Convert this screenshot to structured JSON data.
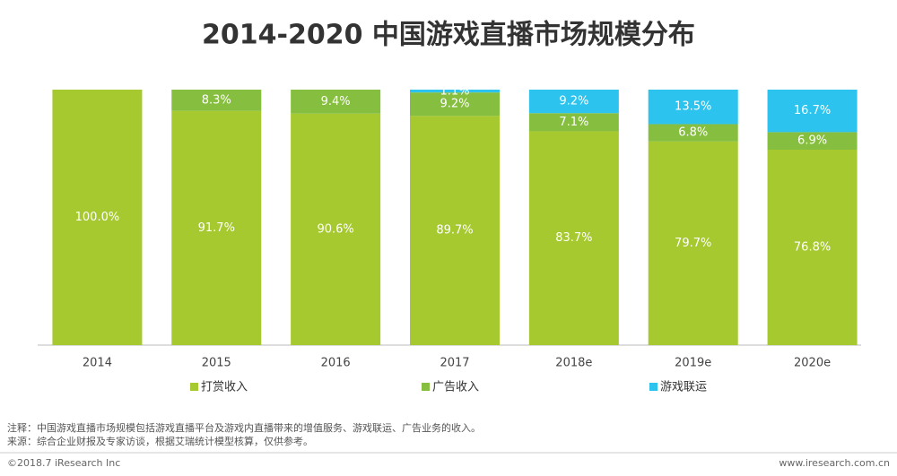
{
  "chart_data": {
    "type": "stacked-bar-100",
    "title": "2014-2020 中国游戏直播市场规模分布",
    "categories": [
      "2014",
      "2015",
      "2016",
      "2017",
      "2018e",
      "2019e",
      "2020e"
    ],
    "series": [
      {
        "name": "打赏收入",
        "color": "#a6c92f",
        "values": [
          100.0,
          91.7,
          90.6,
          89.7,
          83.7,
          79.7,
          76.8
        ],
        "value_labels": [
          "100.0%",
          "91.7%",
          "90.6%",
          "89.7%",
          "83.7%",
          "79.7%",
          "76.8%"
        ]
      },
      {
        "name": "广告收入",
        "color": "#86bf3f",
        "values": [
          null,
          8.3,
          9.4,
          9.2,
          7.1,
          6.8,
          6.9
        ],
        "value_labels": [
          null,
          "8.3%",
          "9.4%",
          "9.2%",
          "7.1%",
          "6.8%",
          "6.9%"
        ]
      },
      {
        "name": "游戏联运",
        "color": "#2cc3ee",
        "values": [
          null,
          null,
          null,
          1.1,
          9.2,
          13.5,
          16.7
        ],
        "value_labels": [
          null,
          null,
          null,
          "1.1%",
          "9.2%",
          "13.5%",
          "16.7%"
        ]
      }
    ],
    "legend": "bottom",
    "note": "注释：中国游戏直播市场规模包括游戏直播平台及游戏内直播带来的增值服务、游戏联运、广告业务的收入。",
    "source": "来源：综合企业财报及专家访谈，根据艾瑞统计模型核算，仅供参考。",
    "copyright": "©2018.7 iResearch Inc",
    "website": "www.iresearch.com.cn"
  }
}
